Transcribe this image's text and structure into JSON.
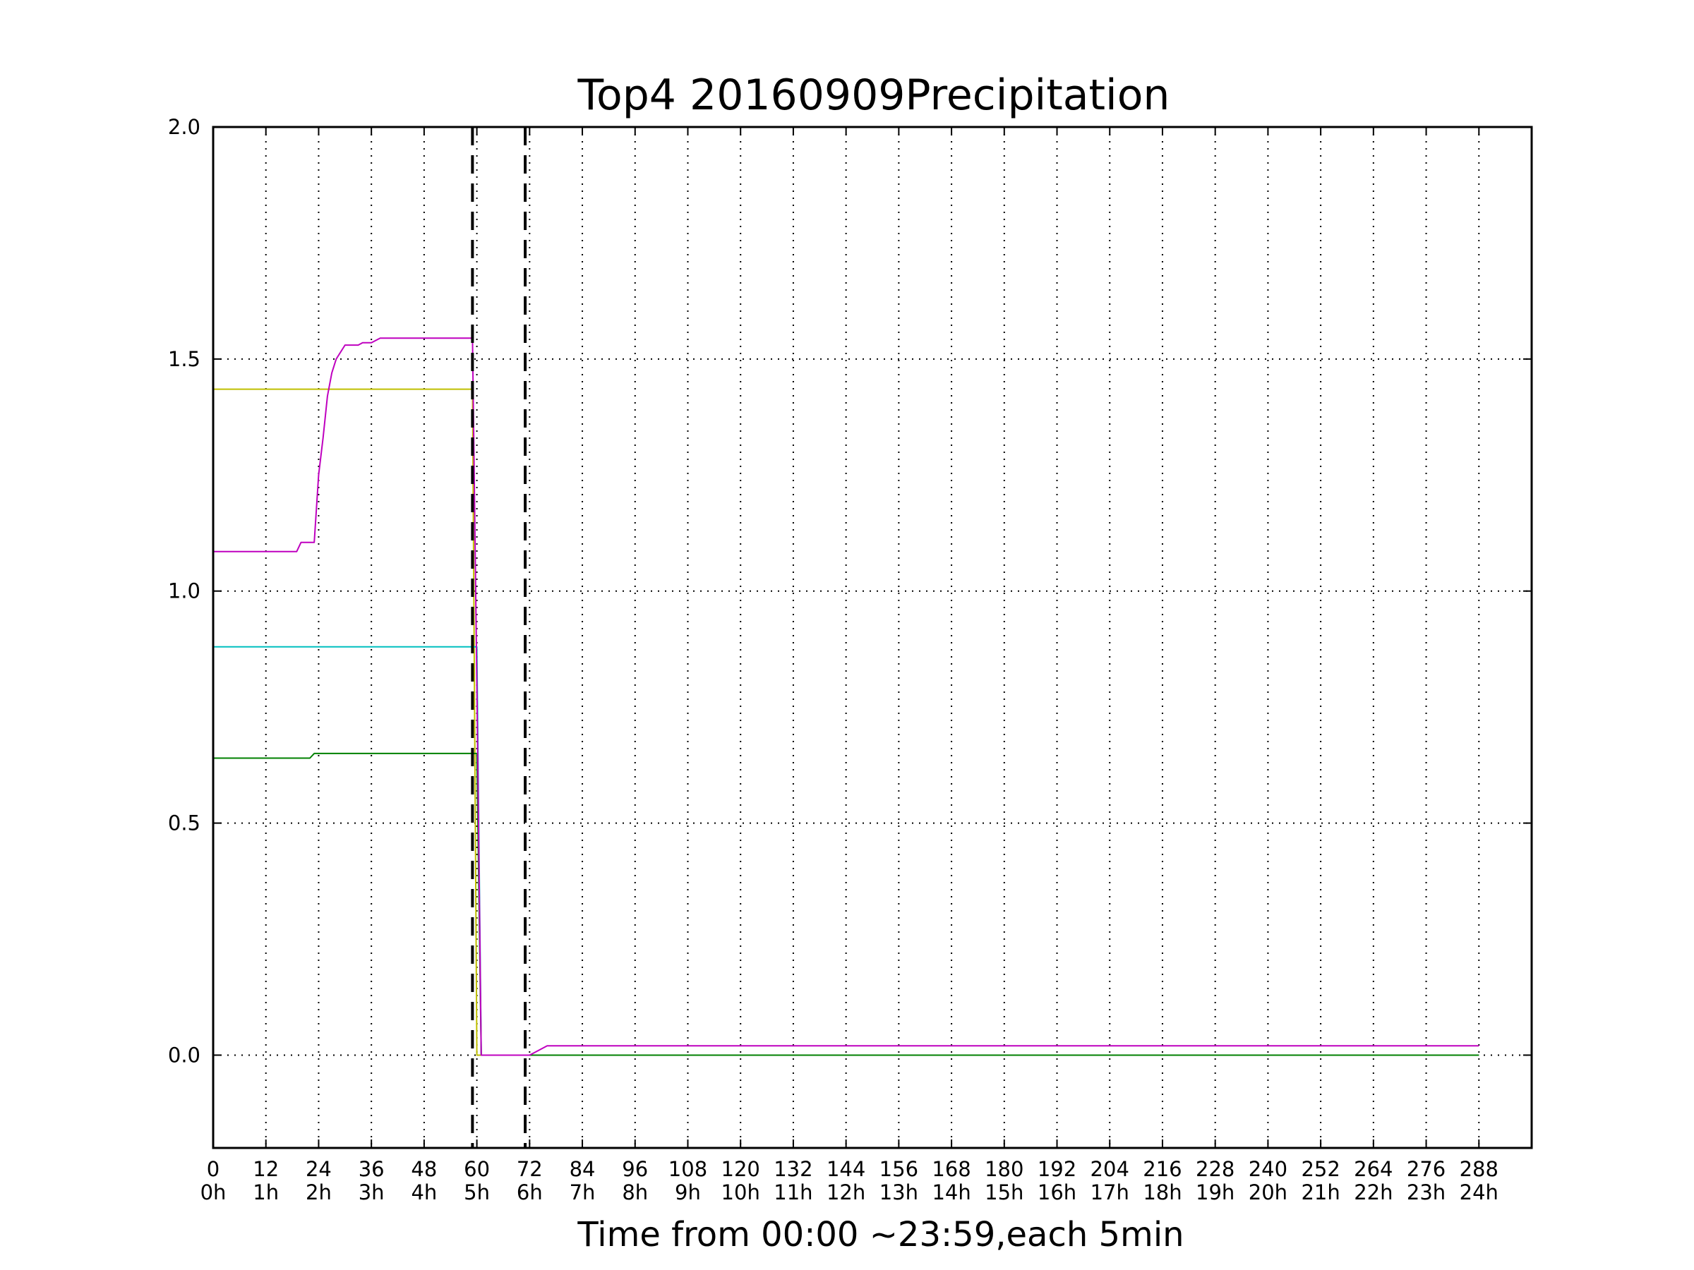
{
  "chart_data": {
    "type": "line",
    "title": "Top4 20160909Precipitation",
    "xlabel": "Time from 00:00 ~23:59,each 5min",
    "ylabel": "",
    "xlim": [
      0,
      300
    ],
    "ylim": [
      -0.2,
      2.0
    ],
    "grid": true,
    "legend": "none",
    "x_ticks": [
      {
        "value": 0,
        "label": "0",
        "sublabel": "0h"
      },
      {
        "value": 12,
        "label": "12",
        "sublabel": "1h"
      },
      {
        "value": 24,
        "label": "24",
        "sublabel": "2h"
      },
      {
        "value": 36,
        "label": "36",
        "sublabel": "3h"
      },
      {
        "value": 48,
        "label": "48",
        "sublabel": "4h"
      },
      {
        "value": 60,
        "label": "60",
        "sublabel": "5h"
      },
      {
        "value": 72,
        "label": "72",
        "sublabel": "6h"
      },
      {
        "value": 84,
        "label": "84",
        "sublabel": "7h"
      },
      {
        "value": 96,
        "label": "96",
        "sublabel": "8h"
      },
      {
        "value": 108,
        "label": "108",
        "sublabel": "9h"
      },
      {
        "value": 120,
        "label": "120",
        "sublabel": "10h"
      },
      {
        "value": 132,
        "label": "132",
        "sublabel": "11h"
      },
      {
        "value": 144,
        "label": "144",
        "sublabel": "12h"
      },
      {
        "value": 156,
        "label": "156",
        "sublabel": "13h"
      },
      {
        "value": 168,
        "label": "168",
        "sublabel": "14h"
      },
      {
        "value": 180,
        "label": "180",
        "sublabel": "15h"
      },
      {
        "value": 192,
        "label": "192",
        "sublabel": "16h"
      },
      {
        "value": 204,
        "label": "204",
        "sublabel": "17h"
      },
      {
        "value": 216,
        "label": "216",
        "sublabel": "18h"
      },
      {
        "value": 228,
        "label": "228",
        "sublabel": "19h"
      },
      {
        "value": 240,
        "label": "240",
        "sublabel": "20h"
      },
      {
        "value": 252,
        "label": "252",
        "sublabel": "21h"
      },
      {
        "value": 264,
        "label": "264",
        "sublabel": "22h"
      },
      {
        "value": 276,
        "label": "276",
        "sublabel": "23h"
      },
      {
        "value": 288,
        "label": "288",
        "sublabel": "24h"
      }
    ],
    "y_ticks": [
      {
        "value": 0.0,
        "label": "0.0"
      },
      {
        "value": 0.5,
        "label": "0.5"
      },
      {
        "value": 1.0,
        "label": "1.0"
      },
      {
        "value": 1.5,
        "label": "1.5"
      },
      {
        "value": 2.0,
        "label": "2.0"
      }
    ],
    "vlines": [
      {
        "x": 59,
        "style": "dashed",
        "color": "#000000"
      },
      {
        "x": 71,
        "style": "dashed",
        "color": "#000000"
      }
    ],
    "series": [
      {
        "color": "#bfbf00",
        "points": [
          [
            0,
            1.435
          ],
          [
            59,
            1.435
          ],
          [
            60,
            0.0
          ],
          [
            62,
            0.0
          ],
          [
            288,
            0.0
          ]
        ]
      },
      {
        "color": "#00bfbf",
        "points": [
          [
            0,
            0.88
          ],
          [
            60,
            0.88
          ],
          [
            61,
            0.0
          ],
          [
            62,
            0.0
          ],
          [
            288,
            0.0
          ]
        ]
      },
      {
        "color": "#008000",
        "points": [
          [
            0,
            0.64
          ],
          [
            22,
            0.64
          ],
          [
            23,
            0.65
          ],
          [
            60,
            0.65
          ],
          [
            61,
            0.0
          ],
          [
            62,
            0.0
          ],
          [
            288,
            0.0
          ]
        ]
      },
      {
        "color": "#bf00bf",
        "points": [
          [
            0,
            1.085
          ],
          [
            19,
            1.085
          ],
          [
            20,
            1.105
          ],
          [
            23,
            1.105
          ],
          [
            24,
            1.25
          ],
          [
            25,
            1.33
          ],
          [
            26,
            1.42
          ],
          [
            27,
            1.47
          ],
          [
            28,
            1.5
          ],
          [
            30,
            1.53
          ],
          [
            33,
            1.53
          ],
          [
            34,
            1.535
          ],
          [
            36,
            1.535
          ],
          [
            38,
            1.545
          ],
          [
            59,
            1.545
          ],
          [
            60,
            0.8
          ],
          [
            61,
            0.0
          ],
          [
            72,
            0.0
          ],
          [
            74,
            0.01
          ],
          [
            76,
            0.02
          ],
          [
            288,
            0.02
          ]
        ]
      }
    ]
  }
}
